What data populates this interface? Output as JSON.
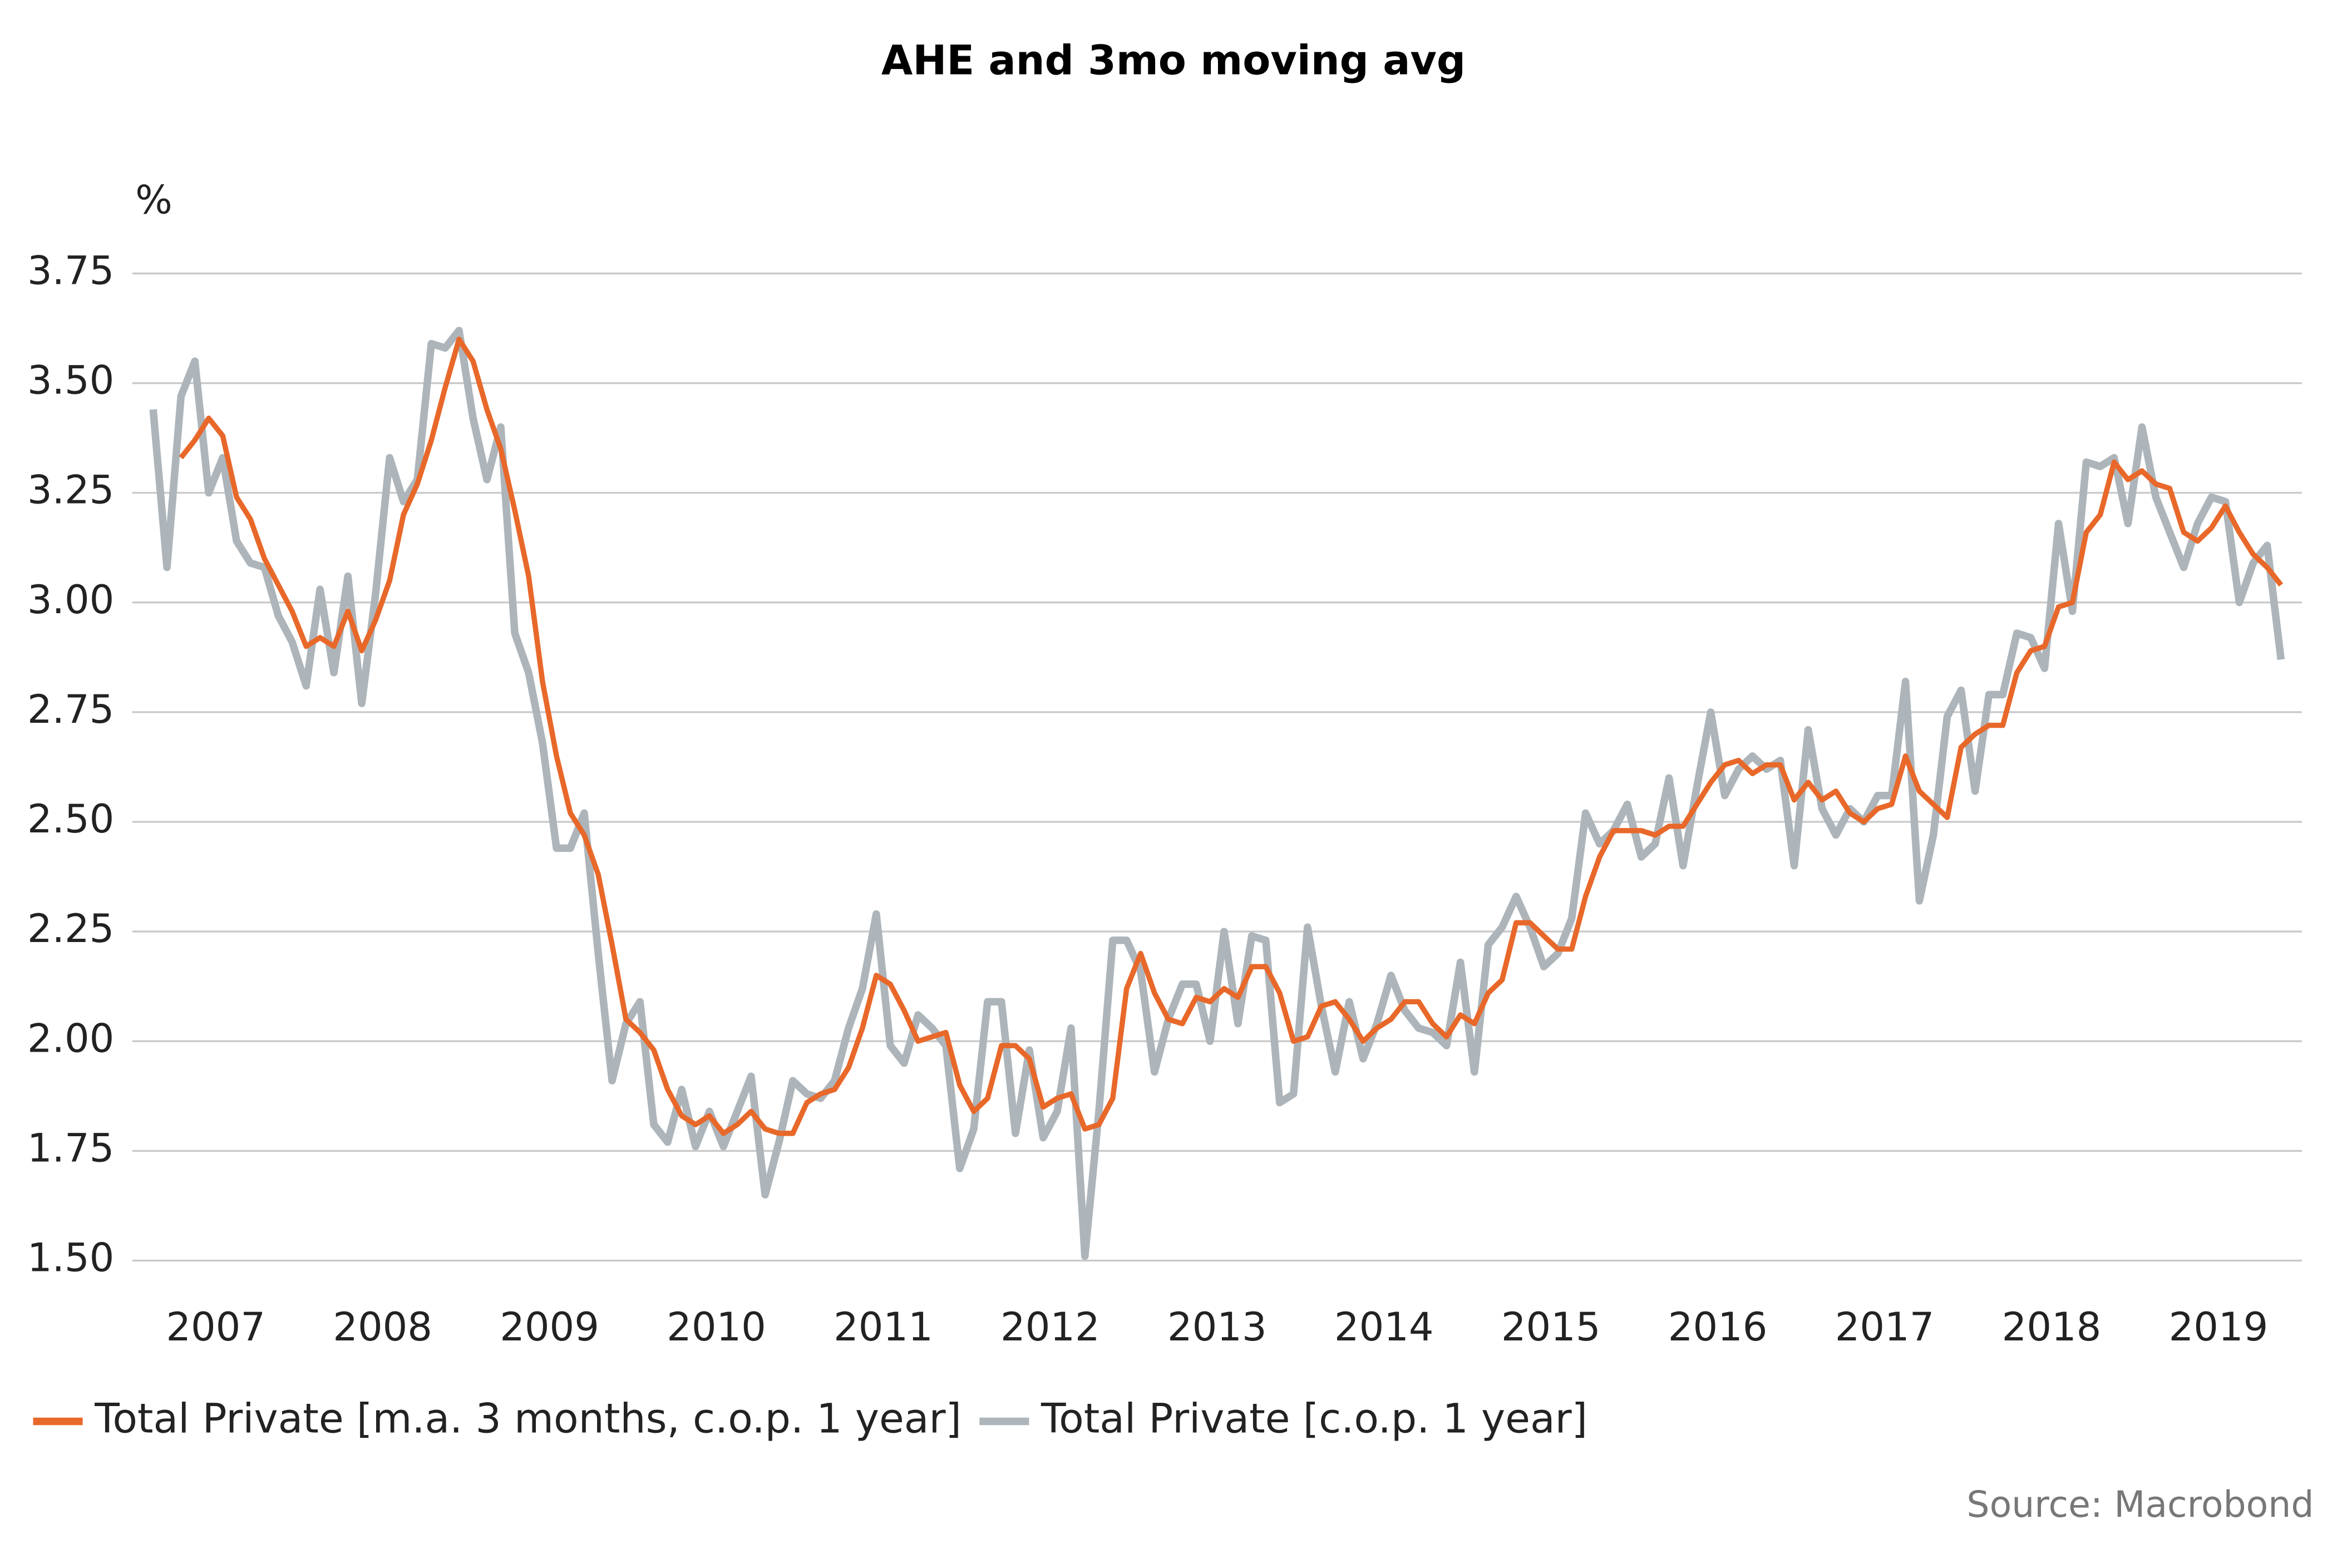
{
  "chart_data": {
    "type": "line",
    "title": "AHE and 3mo moving avg",
    "y_label": "%",
    "source": "Source: Macrobond",
    "legend": "bottom-left",
    "grid": true,
    "xlim": [
      2007,
      2020
    ],
    "xticks": [
      {
        "value": 2007.5,
        "label": "2007"
      },
      {
        "value": 2008.5,
        "label": "2008"
      },
      {
        "value": 2009.5,
        "label": "2009"
      },
      {
        "value": 2010.5,
        "label": "2010"
      },
      {
        "value": 2011.5,
        "label": "2011"
      },
      {
        "value": 2012.5,
        "label": "2012"
      },
      {
        "value": 2013.5,
        "label": "2013"
      },
      {
        "value": 2014.5,
        "label": "2014"
      },
      {
        "value": 2015.5,
        "label": "2015"
      },
      {
        "value": 2016.5,
        "label": "2016"
      },
      {
        "value": 2017.5,
        "label": "2017"
      },
      {
        "value": 2018.5,
        "label": "2018"
      },
      {
        "value": 2019.5,
        "label": "2019"
      }
    ],
    "ylim": [
      1.5,
      3.75
    ],
    "yticks": [
      {
        "value": 1.5,
        "label": "1.50"
      },
      {
        "value": 1.75,
        "label": "1.75"
      },
      {
        "value": 2,
        "label": "2.00"
      },
      {
        "value": 2.25,
        "label": "2.25"
      },
      {
        "value": 2.5,
        "label": "2.50"
      },
      {
        "value": 2.75,
        "label": "2.75"
      },
      {
        "value": 3,
        "label": "3.00"
      },
      {
        "value": 3.25,
        "label": "3.25"
      },
      {
        "value": 3.5,
        "label": "3.50"
      },
      {
        "value": 3.75,
        "label": "3.75"
      }
    ],
    "x": [
      2007.125,
      2007.208,
      2007.292,
      2007.375,
      2007.458,
      2007.542,
      2007.625,
      2007.708,
      2007.792,
      2007.875,
      2007.958,
      2008.042,
      2008.125,
      2008.208,
      2008.292,
      2008.375,
      2008.458,
      2008.542,
      2008.625,
      2008.708,
      2008.792,
      2008.875,
      2008.958,
      2009.042,
      2009.125,
      2009.208,
      2009.292,
      2009.375,
      2009.458,
      2009.542,
      2009.625,
      2009.708,
      2009.792,
      2009.875,
      2009.958,
      2010.042,
      2010.125,
      2010.208,
      2010.292,
      2010.375,
      2010.458,
      2010.542,
      2010.625,
      2010.708,
      2010.792,
      2010.875,
      2010.958,
      2011.042,
      2011.125,
      2011.208,
      2011.292,
      2011.375,
      2011.458,
      2011.542,
      2011.625,
      2011.708,
      2011.792,
      2011.875,
      2011.958,
      2012.042,
      2012.125,
      2012.208,
      2012.292,
      2012.375,
      2012.458,
      2012.542,
      2012.625,
      2012.708,
      2012.792,
      2012.875,
      2012.958,
      2013.042,
      2013.125,
      2013.208,
      2013.292,
      2013.375,
      2013.458,
      2013.542,
      2013.625,
      2013.708,
      2013.792,
      2013.875,
      2013.958,
      2014.042,
      2014.125,
      2014.208,
      2014.292,
      2014.375,
      2014.458,
      2014.542,
      2014.625,
      2014.708,
      2014.792,
      2014.875,
      2014.958,
      2015.042,
      2015.125,
      2015.208,
      2015.292,
      2015.375,
      2015.458,
      2015.542,
      2015.625,
      2015.708,
      2015.792,
      2015.875,
      2015.958,
      2016.042,
      2016.125,
      2016.208,
      2016.292,
      2016.375,
      2016.458,
      2016.542,
      2016.625,
      2016.708,
      2016.792,
      2016.875,
      2016.958,
      2017.042,
      2017.125,
      2017.208,
      2017.292,
      2017.375,
      2017.458,
      2017.542,
      2017.625,
      2017.708,
      2017.792,
      2017.875,
      2017.958,
      2018.042,
      2018.125,
      2018.208,
      2018.292,
      2018.375,
      2018.458,
      2018.542,
      2018.625,
      2018.708,
      2018.792,
      2018.875,
      2018.958,
      2019.042,
      2019.125,
      2019.208,
      2019.292,
      2019.375,
      2019.458,
      2019.542,
      2019.625,
      2019.708,
      2019.792,
      2019.875
    ],
    "series": [
      {
        "name": "Total Private [m.a. 3 months, c.o.p. 1 year]",
        "color": "#e8682a",
        "values": [
          null,
          null,
          3.33,
          3.37,
          3.42,
          3.38,
          3.24,
          3.19,
          3.1,
          3.04,
          2.98,
          2.9,
          2.92,
          2.9,
          2.98,
          2.89,
          2.96,
          3.05,
          3.2,
          3.27,
          3.37,
          3.49,
          3.6,
          3.55,
          3.44,
          3.35,
          3.21,
          3.06,
          2.82,
          2.65,
          2.52,
          2.47,
          2.38,
          2.22,
          2.05,
          2.02,
          1.98,
          1.89,
          1.83,
          1.81,
          1.83,
          1.79,
          1.81,
          1.84,
          1.8,
          1.79,
          1.79,
          1.86,
          1.88,
          1.89,
          1.94,
          2.03,
          2.15,
          2.13,
          2.07,
          2.0,
          2.01,
          2.02,
          1.9,
          1.84,
          1.87,
          1.99,
          1.99,
          1.96,
          1.85,
          1.87,
          1.88,
          1.8,
          1.81,
          1.87,
          2.12,
          2.2,
          2.11,
          2.05,
          2.04,
          2.1,
          2.09,
          2.12,
          2.1,
          2.17,
          2.17,
          2.11,
          2.0,
          2.01,
          2.08,
          2.09,
          2.05,
          2.0,
          2.03,
          2.05,
          2.09,
          2.09,
          2.04,
          2.01,
          2.06,
          2.04,
          2.11,
          2.14,
          2.27,
          2.27,
          2.24,
          2.21,
          2.21,
          2.33,
          2.42,
          2.48,
          2.48,
          2.48,
          2.47,
          2.49,
          2.49,
          2.54,
          2.59,
          2.63,
          2.64,
          2.61,
          2.63,
          2.63,
          2.55,
          2.59,
          2.55,
          2.57,
          2.52,
          2.5,
          2.53,
          2.54,
          2.65,
          2.57,
          2.54,
          2.51,
          2.67,
          2.7,
          2.72,
          2.72,
          2.84,
          2.89,
          2.9,
          2.99,
          3.0,
          3.16,
          3.2,
          3.32,
          3.28,
          3.3,
          3.27,
          3.26,
          3.16,
          3.14,
          3.17,
          3.22,
          3.16,
          3.11,
          3.08,
          3.04
        ]
      },
      {
        "name": "Total Private [c.o.p. 1 year]",
        "color": "#adb5ba",
        "values": [
          3.44,
          3.08,
          3.47,
          3.55,
          3.25,
          3.33,
          3.14,
          3.09,
          3.08,
          2.97,
          2.91,
          2.81,
          3.03,
          2.84,
          3.06,
          2.77,
          3.02,
          3.33,
          3.23,
          3.28,
          3.59,
          3.58,
          3.62,
          3.42,
          3.28,
          3.4,
          2.93,
          2.84,
          2.68,
          2.44,
          2.44,
          2.52,
          2.2,
          1.91,
          2.04,
          2.09,
          1.81,
          1.77,
          1.89,
          1.76,
          1.84,
          1.76,
          1.84,
          1.92,
          1.65,
          1.77,
          1.91,
          1.88,
          1.87,
          1.91,
          2.03,
          2.12,
          2.29,
          1.99,
          1.95,
          2.06,
          2.03,
          1.99,
          1.71,
          1.8,
          2.09,
          2.09,
          1.79,
          1.98,
          1.78,
          1.84,
          2.03,
          1.51,
          1.84,
          2.23,
          2.23,
          2.16,
          1.93,
          2.05,
          2.13,
          2.13,
          2.0,
          2.25,
          2.04,
          2.24,
          2.23,
          1.86,
          1.88,
          2.26,
          2.08,
          1.93,
          2.09,
          1.96,
          2.04,
          2.15,
          2.07,
          2.03,
          2.02,
          1.99,
          2.18,
          1.93,
          2.22,
          2.26,
          2.33,
          2.26,
          2.17,
          2.2,
          2.28,
          2.52,
          2.45,
          2.48,
          2.54,
          2.42,
          2.45,
          2.6,
          2.4,
          2.58,
          2.75,
          2.56,
          2.62,
          2.65,
          2.62,
          2.64,
          2.4,
          2.71,
          2.53,
          2.47,
          2.53,
          2.5,
          2.56,
          2.56,
          2.82,
          2.32,
          2.47,
          2.74,
          2.8,
          2.57,
          2.79,
          2.79,
          2.93,
          2.92,
          2.85,
          3.18,
          2.98,
          3.32,
          3.31,
          3.33,
          3.18,
          3.4,
          3.24,
          3.16,
          3.08,
          3.18,
          3.24,
          3.23,
          3.0,
          3.09,
          3.13,
          2.87
        ]
      }
    ]
  }
}
